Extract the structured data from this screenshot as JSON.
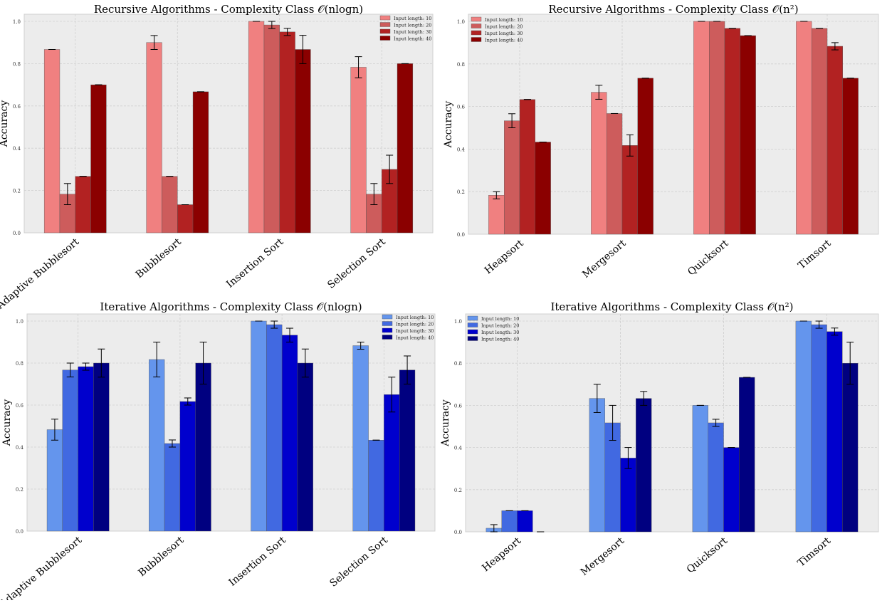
{
  "chart_data": [
    {
      "type": "bar",
      "title": "Recursive Algorithms - Complexity Class",
      "title_math": "𝒪(nlogn)",
      "ylabel": "Accuracy",
      "xlabel": "",
      "ylim": [
        0,
        1.0
      ],
      "yticks": [
        "0.0",
        "0.2",
        "0.4",
        "0.6",
        "0.8",
        "1.0"
      ],
      "legend_position": "top-right",
      "categories": [
        "Adaptive Bubblesort",
        "Bubblesort",
        "Insertion Sort",
        "Selection Sort"
      ],
      "series": [
        {
          "name": "Input length: 10",
          "color": "#f08080",
          "values": [
            0.867,
            0.9,
            1.0,
            0.783
          ],
          "errors": [
            0.0,
            0.033,
            0.0,
            0.05
          ]
        },
        {
          "name": "Input length: 20",
          "color": "#cd5c5c",
          "values": [
            0.183,
            0.267,
            0.983,
            0.183
          ],
          "errors": [
            0.05,
            0.0,
            0.017,
            0.05
          ]
        },
        {
          "name": "Input length: 30",
          "color": "#b22222",
          "values": [
            0.267,
            0.133,
            0.95,
            0.3
          ],
          "errors": [
            0.0,
            0.0,
            0.017,
            0.067
          ]
        },
        {
          "name": "Input length: 40",
          "color": "#8b0000",
          "values": [
            0.7,
            0.667,
            0.867,
            0.8
          ],
          "errors": [
            0.0,
            0.0,
            0.067,
            0.0
          ]
        }
      ]
    },
    {
      "type": "bar",
      "title": "Recursive Algorithms - Complexity Class",
      "title_math": "𝒪(n²)",
      "ylabel": "Accuracy",
      "xlabel": "",
      "ylim": [
        0,
        1.0
      ],
      "yticks": [
        "0.0",
        "0.2",
        "0.4",
        "0.6",
        "0.8",
        "1.0"
      ],
      "legend_position": "top-left",
      "categories": [
        "Heapsort",
        "Mergesort",
        "Quicksort",
        "Timsort"
      ],
      "series": [
        {
          "name": "Input length: 10",
          "color": "#f08080",
          "values": [
            0.183,
            0.667,
            1.0,
            1.0
          ],
          "errors": [
            0.017,
            0.033,
            0.0,
            0.0
          ]
        },
        {
          "name": "Input length: 20",
          "color": "#cd5c5c",
          "values": [
            0.533,
            0.567,
            1.0,
            0.967
          ],
          "errors": [
            0.033,
            0.0,
            0.0,
            0.0
          ]
        },
        {
          "name": "Input length: 30",
          "color": "#b22222",
          "values": [
            0.633,
            0.417,
            0.967,
            0.883
          ],
          "errors": [
            0.0,
            0.05,
            0.0,
            0.017
          ]
        },
        {
          "name": "Input length: 40",
          "color": "#8b0000",
          "values": [
            0.433,
            0.733,
            0.933,
            0.733
          ],
          "errors": [
            0.0,
            0.0,
            0.0,
            0.0
          ]
        }
      ]
    },
    {
      "type": "bar",
      "title": "Iterative Algorithms - Complexity Class",
      "title_math": "𝒪(nlogn)",
      "ylabel": "Accuracy",
      "xlabel": "",
      "ylim": [
        0,
        1.0
      ],
      "yticks": [
        "0.0",
        "0.2",
        "0.4",
        "0.6",
        "0.8",
        "1.0"
      ],
      "legend_position": "top-right",
      "categories": [
        "Adaptive Bubblesort",
        "Bubblesort",
        "Insertion Sort",
        "Selection Sort"
      ],
      "series": [
        {
          "name": "Input length: 10",
          "color": "#6495ed",
          "values": [
            0.483,
            0.817,
            1.0,
            0.883
          ],
          "errors": [
            0.05,
            0.083,
            0.0,
            0.017
          ]
        },
        {
          "name": "Input length: 20",
          "color": "#4169e1",
          "values": [
            0.767,
            0.417,
            0.983,
            0.433
          ],
          "errors": [
            0.033,
            0.017,
            0.017,
            0.0
          ]
        },
        {
          "name": "Input length: 30",
          "color": "#0000cd",
          "values": [
            0.783,
            0.617,
            0.933,
            0.65
          ],
          "errors": [
            0.017,
            0.017,
            0.033,
            0.083
          ]
        },
        {
          "name": "Input length: 40",
          "color": "#000080",
          "values": [
            0.8,
            0.8,
            0.8,
            0.767
          ],
          "errors": [
            0.067,
            0.1,
            0.067,
            0.067
          ]
        }
      ]
    },
    {
      "type": "bar",
      "title": "Iterative Algorithms - Complexity Class",
      "title_math": "𝒪(n²)",
      "ylabel": "Accuracy",
      "xlabel": "",
      "ylim": [
        0,
        1.0
      ],
      "yticks": [
        "0.0",
        "0.2",
        "0.4",
        "0.6",
        "0.8",
        "1.0"
      ],
      "legend_position": "top-left",
      "categories": [
        "Heapsort",
        "Mergesort",
        "Quicksort",
        "Timsort"
      ],
      "series": [
        {
          "name": "Input length: 10",
          "color": "#6495ed",
          "values": [
            0.017,
            0.633,
            0.6,
            1.0
          ],
          "errors": [
            0.017,
            0.067,
            0.0,
            0.0
          ]
        },
        {
          "name": "Input length: 20",
          "color": "#4169e1",
          "values": [
            0.1,
            0.517,
            0.517,
            0.983
          ],
          "errors": [
            0.0,
            0.083,
            0.017,
            0.017
          ]
        },
        {
          "name": "Input length: 30",
          "color": "#0000cd",
          "values": [
            0.1,
            0.35,
            0.4,
            0.95
          ],
          "errors": [
            0.0,
            0.05,
            0.0,
            0.017
          ]
        },
        {
          "name": "Input length: 40",
          "color": "#000080",
          "values": [
            0.0,
            0.633,
            0.733,
            0.8
          ],
          "errors": [
            0.0,
            0.033,
            0.0,
            0.1
          ]
        }
      ]
    }
  ]
}
